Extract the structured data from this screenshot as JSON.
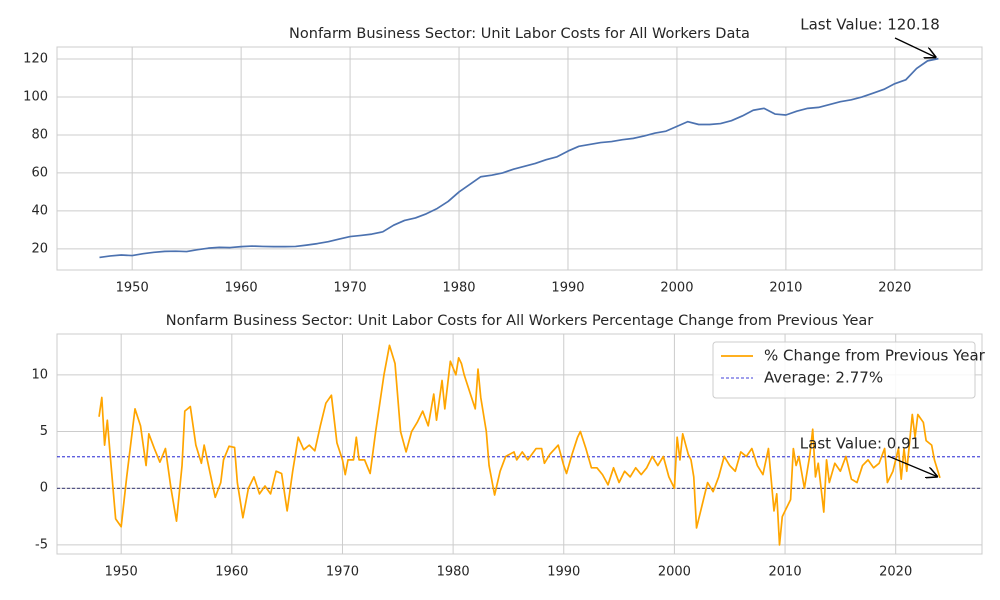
{
  "chart_data": [
    {
      "type": "line",
      "title": "Nonfarm Business Sector: Unit Labor Costs for All Workers Data",
      "x": [
        1947,
        1948,
        1949,
        1950,
        1951,
        1952,
        1953,
        1954,
        1955,
        1956,
        1957,
        1958,
        1959,
        1960,
        1961,
        1962,
        1963,
        1964,
        1965,
        1966,
        1967,
        1968,
        1969,
        1970,
        1971,
        1972,
        1973,
        1974,
        1975,
        1976,
        1977,
        1978,
        1979,
        1980,
        1981,
        1982,
        1983,
        1984,
        1985,
        1986,
        1987,
        1988,
        1989,
        1990,
        1991,
        1992,
        1993,
        1994,
        1995,
        1996,
        1997,
        1998,
        1999,
        2000,
        2001,
        2002,
        2003,
        2004,
        2005,
        2006,
        2007,
        2008,
        2009,
        2010,
        2011,
        2012,
        2013,
        2014,
        2015,
        2016,
        2017,
        2018,
        2019,
        2020,
        2021,
        2022,
        2023,
        2024
      ],
      "series": [
        {
          "color": "#4c72b0",
          "values": [
            15.5,
            16.3,
            16.8,
            16.5,
            17.5,
            18.2,
            18.7,
            18.8,
            18.6,
            19.6,
            20.4,
            20.8,
            20.7,
            21.2,
            21.5,
            21.3,
            21.2,
            21.2,
            21.3,
            22.0,
            22.8,
            23.8,
            25.2,
            26.5,
            27.1,
            27.8,
            29.0,
            32.5,
            35.0,
            36.3,
            38.5,
            41.3,
            45.0,
            50.0,
            54.0,
            58.0,
            58.8,
            60.0,
            62.0,
            63.5,
            65.0,
            67.0,
            68.5,
            71.5,
            74.0,
            75.0,
            76.0,
            76.5,
            77.5,
            78.2,
            79.5,
            81.0,
            82.0,
            84.5,
            87.0,
            85.5,
            85.5,
            86.0,
            87.5,
            90.0,
            93.0,
            94.0,
            91.0,
            90.5,
            92.5,
            94.0,
            94.5,
            96.0,
            97.5,
            98.5,
            100.0,
            102.0,
            104.0,
            107.0,
            109.0,
            115.0,
            119.0,
            120.18
          ]
        }
      ],
      "annotation": "Last Value: 120.18",
      "xlim": [
        1943.1,
        2028.0
      ],
      "xticks": [
        1950,
        1960,
        1970,
        1980,
        1990,
        2000,
        2010,
        2020
      ],
      "ylim": [
        8.9,
        126.3
      ],
      "yticks": [
        20,
        40,
        60,
        80,
        100,
        120
      ],
      "grid": true
    },
    {
      "type": "line",
      "title": "Nonfarm Business Sector: Unit Labor Costs for All Workers Percentage Change from Previous Year",
      "x": [
        1948,
        1948.25,
        1948.5,
        1948.75,
        1949,
        1949.5,
        1950,
        1950.5,
        1951,
        1951.25,
        1951.75,
        1952.25,
        1952.5,
        1953,
        1953.5,
        1954,
        1954.5,
        1955,
        1955.5,
        1955.75,
        1956.25,
        1956.75,
        1957.25,
        1957.5,
        1958,
        1958.5,
        1959,
        1959.25,
        1959.75,
        1960.25,
        1960.5,
        1961,
        1961.5,
        1962,
        1962.5,
        1963,
        1963.5,
        1964,
        1964.5,
        1965,
        1965.5,
        1966,
        1966.5,
        1967,
        1967.5,
        1968,
        1968.5,
        1969,
        1969.5,
        1970,
        1970.25,
        1970.5,
        1971,
        1971.25,
        1971.5,
        1972,
        1972.5,
        1973,
        1973.75,
        1974.25,
        1974.75,
        1975.25,
        1975.75,
        1976.25,
        1976.75,
        1977.25,
        1977.75,
        1978.25,
        1978.5,
        1979,
        1979.25,
        1979.75,
        1980.25,
        1980.5,
        1980.75,
        1981,
        1981.5,
        1982,
        1982.25,
        1982.5,
        1983,
        1983.25,
        1983.75,
        1984.25,
        1984.75,
        1985.5,
        1985.75,
        1986.25,
        1986.75,
        1987.5,
        1988,
        1988.25,
        1988.75,
        1989.5,
        1990,
        1990.25,
        1990.75,
        1991.25,
        1991.5,
        1992,
        1992.5,
        1993,
        1993.5,
        1994,
        1994.5,
        1995,
        1995.5,
        1996,
        1996.5,
        1997,
        1997.5,
        1998,
        1998.5,
        1999,
        1999.5,
        2000,
        2000.25,
        2000.5,
        2000.75,
        2001.25,
        2001.5,
        2001.75,
        2002,
        2002.5,
        2003,
        2003.5,
        2004,
        2004.5,
        2005,
        2005.5,
        2006,
        2006.5,
        2007,
        2007.5,
        2008,
        2008.5,
        2009,
        2009.25,
        2009.5,
        2009.75,
        2010.5,
        2010.75,
        2011,
        2011.25,
        2011.75,
        2012.25,
        2012.5,
        2012.75,
        2013,
        2013.5,
        2013.75,
        2014,
        2014.5,
        2015,
        2015.5,
        2016,
        2016.5,
        2017,
        2017.5,
        2018,
        2018.5,
        2019,
        2019.25,
        2019.75,
        2020.25,
        2020.5,
        2020.75,
        2021,
        2021.5,
        2021.75,
        2022,
        2022.5,
        2022.75,
        2023.25,
        2023.5,
        2024
      ],
      "series": [
        {
          "name": "% Change from Previous Year",
          "color": "#ffa500",
          "values": [
            6.3,
            8.0,
            3.8,
            6.0,
            3.0,
            -2.7,
            -3.4,
            1.0,
            5.0,
            7.0,
            5.5,
            2.0,
            4.8,
            3.5,
            2.3,
            3.5,
            0.0,
            -2.9,
            2.0,
            6.8,
            7.2,
            3.8,
            2.2,
            3.8,
            1.5,
            -0.8,
            0.5,
            2.5,
            3.7,
            3.6,
            0.5,
            -2.6,
            0.0,
            1.0,
            -0.5,
            0.2,
            -0.5,
            1.5,
            1.3,
            -2.0,
            1.5,
            4.5,
            3.4,
            3.8,
            3.3,
            5.5,
            7.5,
            8.2,
            4.0,
            2.5,
            1.2,
            2.5,
            2.5,
            4.5,
            2.5,
            2.5,
            1.3,
            5.0,
            10.0,
            12.6,
            11.0,
            5.0,
            3.2,
            5.0,
            5.8,
            6.8,
            5.5,
            8.3,
            6.0,
            9.5,
            7.0,
            11.2,
            10.0,
            11.5,
            11.0,
            10.0,
            8.5,
            7.0,
            10.5,
            8.0,
            5.0,
            2.0,
            -0.6,
            1.5,
            2.8,
            3.2,
            2.5,
            3.2,
            2.5,
            3.5,
            3.5,
            2.2,
            3.0,
            3.8,
            2.0,
            1.3,
            3.0,
            4.5,
            5.0,
            3.5,
            1.8,
            1.8,
            1.2,
            0.3,
            1.8,
            0.5,
            1.5,
            1.0,
            1.8,
            1.2,
            1.8,
            2.8,
            2.0,
            2.8,
            1.0,
            0.0,
            4.5,
            2.5,
            4.8,
            3.0,
            2.5,
            1.0,
            -3.5,
            -1.5,
            0.5,
            -0.3,
            1.0,
            2.8,
            2.0,
            1.5,
            3.2,
            2.8,
            3.5,
            2.0,
            1.2,
            3.5,
            -2.0,
            -0.5,
            -5.0,
            -2.5,
            -1.0,
            3.5,
            2.0,
            2.8,
            0.0,
            3.0,
            5.2,
            1.0,
            2.2,
            -2.1,
            2.5,
            0.5,
            2.2,
            1.5,
            2.8,
            0.8,
            0.5,
            2.0,
            2.5,
            1.8,
            2.2,
            3.5,
            0.5,
            1.5,
            3.5,
            0.8,
            3.5,
            1.5,
            6.5,
            4.5,
            6.5,
            5.8,
            4.2,
            3.8,
            2.5,
            0.91
          ]
        }
      ],
      "reference_lines": [
        {
          "name": "Average: 2.77%",
          "value": 2.77,
          "color": "#0000cc"
        },
        {
          "value": 0,
          "color": "#000050"
        }
      ],
      "annotation": "Last Value: 0.91",
      "xlim": [
        1944.2,
        2027.8
      ],
      "xticks": [
        1950,
        1960,
        1970,
        1980,
        1990,
        2000,
        2010,
        2020
      ],
      "ylim": [
        -5.8,
        13.6
      ],
      "yticks": [
        -5,
        0,
        5,
        10
      ],
      "grid": true,
      "legend": "upper right"
    }
  ]
}
